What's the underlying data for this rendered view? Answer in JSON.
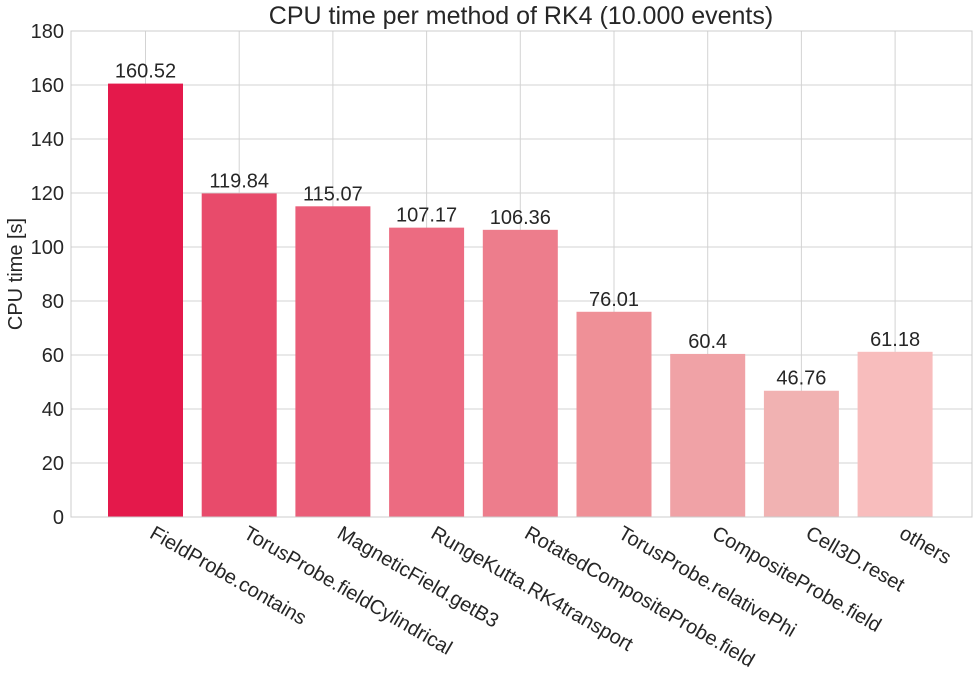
{
  "chart_data": {
    "type": "bar",
    "title": "CPU time per method of RK4 (10.000 events)",
    "xlabel": "",
    "ylabel": "CPU time [s]",
    "ylim": [
      0,
      180
    ],
    "yticks": [
      0,
      20,
      40,
      60,
      80,
      100,
      120,
      140,
      160,
      180
    ],
    "grid": true,
    "categories": [
      "FieldProbe.contains",
      "TorusProbe.fieldCylindrical",
      "MagneticField.getB3",
      "RungeKutta.RK4transport",
      "RotatedCompositeProbe.field",
      "TorusProbe.relativePhi",
      "CompositeProbe.field",
      "Cell3D.reset",
      "others"
    ],
    "values": [
      160.52,
      119.84,
      115.07,
      107.17,
      106.36,
      76.01,
      60.4,
      46.76,
      61.18
    ],
    "value_labels": [
      "160.52",
      "119.84",
      "115.07",
      "107.17",
      "106.36",
      "76.01",
      "60.4",
      "46.76",
      "61.18"
    ],
    "colors": [
      "#e4194b",
      "#e84b6b",
      "#ea5d78",
      "#ec6b81",
      "#ed7d8c",
      "#ef9097",
      "#f0a2a6",
      "#f1b2b2",
      "#f8bdbd"
    ]
  }
}
